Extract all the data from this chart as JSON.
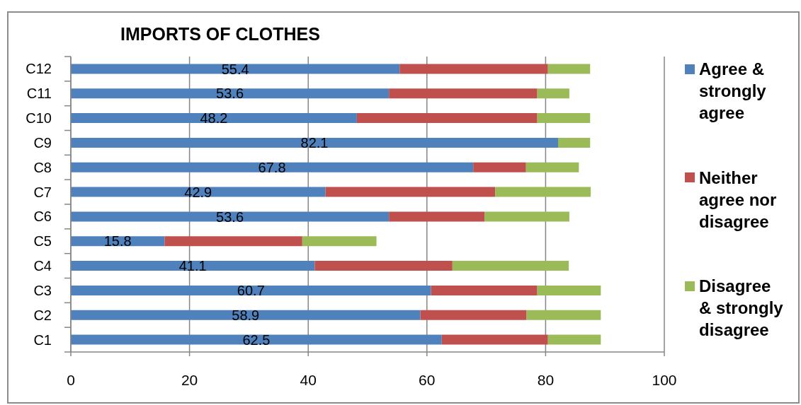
{
  "chart_data": {
    "type": "bar",
    "orientation": "horizontal",
    "stacked": true,
    "title": "IMPORTS OF CLOTHES",
    "categories": [
      "C12",
      "C11",
      "C10",
      "C9",
      "C8",
      "C7",
      "C6",
      "C5",
      "C4",
      "C3",
      "C2",
      "C1"
    ],
    "series": [
      {
        "name": "Agree & strongly agree",
        "color": "#4f81bd",
        "values": [
          55.4,
          53.6,
          48.2,
          82.1,
          67.8,
          42.9,
          53.6,
          15.8,
          41.1,
          60.7,
          58.9,
          62.5
        ],
        "value_labels": [
          "55.4",
          "53.6",
          "48.2",
          "82.1",
          "67.8",
          "42.9",
          "53.6",
          "15.8",
          "41.1",
          "60.7",
          "58.9",
          "62.5"
        ]
      },
      {
        "name": "Neither agree nor disagree",
        "color": "#c0504d",
        "values": [
          25.0,
          25.0,
          30.4,
          0,
          8.9,
          28.6,
          16.1,
          23.2,
          23.2,
          17.9,
          17.9,
          17.9
        ]
      },
      {
        "name": "Disagree & strongly disagree",
        "color": "#9bbb59",
        "values": [
          7.1,
          5.4,
          8.9,
          5.4,
          8.9,
          16.1,
          14.3,
          12.5,
          19.6,
          10.7,
          12.5,
          8.9
        ]
      }
    ],
    "xlim": [
      0,
      100
    ],
    "xticks": [
      0,
      20,
      40,
      60,
      80,
      100
    ],
    "grid": "x",
    "legend": "right"
  }
}
